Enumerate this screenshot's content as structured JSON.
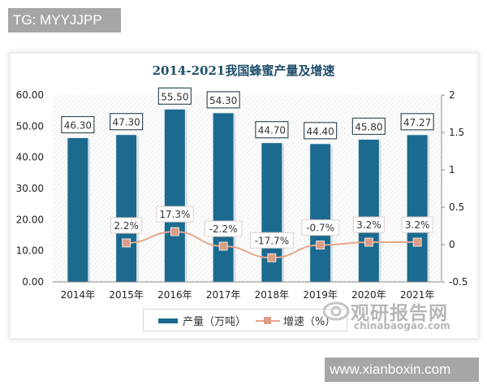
{
  "watermarks": {
    "top": "TG: MYYJJPP",
    "bottom": "www.xianboxin.com"
  },
  "logo": {
    "name_cn": "观研报告网",
    "name_en": "chinabaogao.com"
  },
  "colors": {
    "bar": "#1c6a8f",
    "line": "#e6a58c",
    "marker": "#dd9d84",
    "title": "#1e4e6a"
  },
  "legend": {
    "series1": "产量（万吨）",
    "series2": "增速（%）"
  },
  "chart_data": {
    "type": "bar",
    "title": "2014-2021我国蜂蜜产量及增速",
    "categories": [
      "2014年",
      "2015年",
      "2016年",
      "2017年",
      "2018年",
      "2019年",
      "2020年",
      "2021年"
    ],
    "series": [
      {
        "name": "产量（万吨）",
        "type": "bar",
        "axis": "left",
        "values": [
          46.3,
          47.3,
          55.5,
          54.3,
          44.7,
          44.4,
          45.8,
          47.27
        ],
        "labels": [
          "46.30",
          "47.30",
          "55.50",
          "54.30",
          "44.70",
          "44.40",
          "45.80",
          "47.27"
        ]
      },
      {
        "name": "增速（%）",
        "type": "line",
        "axis": "right",
        "values": [
          null,
          0.022,
          0.173,
          -0.022,
          -0.177,
          -0.007,
          0.032,
          0.032
        ],
        "labels": [
          "",
          "2.2%",
          "17.3%",
          "-2.2%",
          "-17.7%",
          "-0.7%",
          "3.2%",
          "3.2%"
        ]
      }
    ],
    "left_axis": {
      "ticks": [
        "0.00",
        "10.00",
        "20.00",
        "30.00",
        "40.00",
        "50.00",
        "60.00"
      ],
      "ylim": [
        0,
        60
      ]
    },
    "right_axis": {
      "ticks": [
        "-0.5",
        "0",
        "0.5",
        "1",
        "1.5",
        "2"
      ],
      "ylim": [
        -0.5,
        2
      ]
    },
    "xlabel": "",
    "ylabel": "",
    "legend_position": "bottom",
    "grid": false
  }
}
